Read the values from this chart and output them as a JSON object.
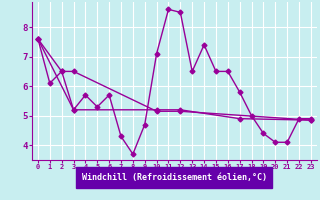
{
  "xlabel": "Windchill (Refroidissement éolien,°C)",
  "background_color": "#c8eef0",
  "xlabel_bg_color": "#6600aa",
  "line_color": "#990099",
  "grid_color": "#ffffff",
  "xlim": [
    -0.5,
    23.5
  ],
  "ylim": [
    3.5,
    8.85
  ],
  "yticks": [
    4,
    5,
    6,
    7,
    8
  ],
  "xticks": [
    0,
    1,
    2,
    3,
    4,
    5,
    6,
    7,
    8,
    9,
    10,
    11,
    12,
    13,
    14,
    15,
    16,
    17,
    18,
    19,
    20,
    21,
    22,
    23
  ],
  "series1_x": [
    0,
    1,
    2,
    3,
    4,
    5,
    6,
    7,
    8,
    9,
    10,
    11,
    12,
    13,
    14,
    15,
    16,
    17,
    18,
    19,
    20,
    21,
    22,
    23
  ],
  "series1_y": [
    7.6,
    6.1,
    6.5,
    5.2,
    5.7,
    5.3,
    5.7,
    4.3,
    3.7,
    4.7,
    7.1,
    8.6,
    8.5,
    6.5,
    7.4,
    6.5,
    6.5,
    5.8,
    5.0,
    4.4,
    4.1,
    4.1,
    4.9,
    4.9
  ],
  "series2_x": [
    0,
    2,
    3,
    10,
    12,
    23
  ],
  "series2_y": [
    7.6,
    6.5,
    6.5,
    5.15,
    5.15,
    4.85
  ],
  "series3_x": [
    0,
    3,
    10,
    12,
    17,
    23
  ],
  "series3_y": [
    7.6,
    5.2,
    5.2,
    5.2,
    4.9,
    4.85
  ],
  "marker_size": 2.5,
  "line_width": 1.0
}
